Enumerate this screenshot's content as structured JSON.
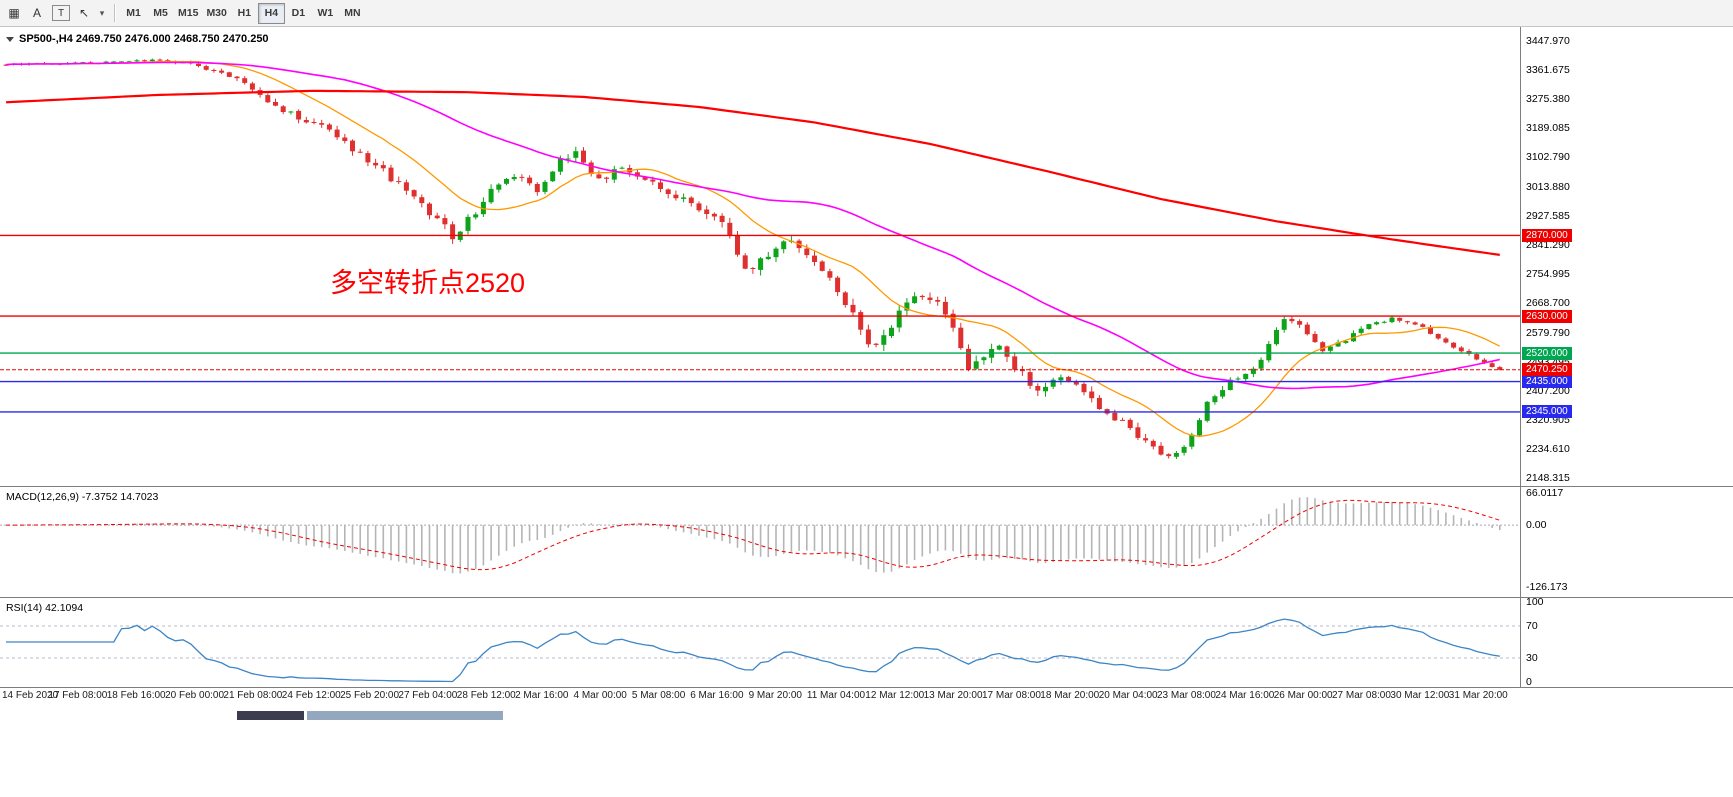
{
  "toolbar": {
    "icons": [
      {
        "name": "chart-grid-icon",
        "glyph": "▦",
        "boxed": false
      },
      {
        "name": "text-annotation-icon",
        "glyph": "A",
        "boxed": false
      },
      {
        "name": "text-label-icon",
        "glyph": "T",
        "boxed": true
      },
      {
        "name": "cursor-tool-icon",
        "glyph": "↖",
        "boxed": false
      },
      {
        "name": "dropdown-arrow-icon",
        "glyph": "▾",
        "boxed": false
      }
    ],
    "timeframes": [
      "M1",
      "M5",
      "M15",
      "M30",
      "H1",
      "H4",
      "D1",
      "W1",
      "MN"
    ],
    "selected_timeframe": "H4"
  },
  "chart": {
    "title": "SP500-,H4  2469.750 2476.000 2468.750 2470.250",
    "annotation": "多空转折点2520",
    "macd_label": "MACD(12,26,9) -7.3752 14.7023",
    "rsi_label": "RSI(14) 42.1094"
  },
  "chart_data": {
    "type": "candlestick",
    "symbol": "SP500-",
    "timeframe": "H4",
    "ohlc": {
      "open": "2469.750",
      "high": "2476.000",
      "low": "2468.750",
      "close": "2470.250"
    },
    "y_ticks": [
      "3447.970",
      "3361.675",
      "3275.380",
      "3189.085",
      "3102.790",
      "3013.880",
      "2927.585",
      "2841.290",
      "2754.995",
      "2668.700",
      "2579.790",
      "2493.495",
      "2407.200",
      "2320.905",
      "2234.610",
      "2148.315"
    ],
    "y_range": [
      2127.6,
      3472.0
    ],
    "x_labels": [
      "14 Feb 2020",
      "17 Feb 08:00",
      "18 Feb 16:00",
      "20 Feb 00:00",
      "21 Feb 08:00",
      "24 Feb 12:00",
      "25 Feb 20:00",
      "27 Feb 04:00",
      "28 Feb 12:00",
      "2 Mar 16:00",
      "4 Mar 00:00",
      "5 Mar 08:00",
      "6 Mar 16:00",
      "9 Mar 20:00",
      "11 Mar 04:00",
      "12 Mar 12:00",
      "13 Mar 20:00",
      "17 Mar 08:00",
      "18 Mar 20:00",
      "20 Mar 04:00",
      "23 Mar 08:00",
      "24 Mar 16:00",
      "26 Mar 00:00",
      "27 Mar 08:00",
      "30 Mar 12:00",
      "31 Mar 20:00"
    ],
    "num_candles": 195,
    "last_close": 2470.25,
    "price_anchors": [
      [
        0,
        3378,
        7
      ],
      [
        8,
        3382,
        7
      ],
      [
        14,
        3387,
        7
      ],
      [
        19,
        3391,
        8
      ],
      [
        24,
        3383,
        10
      ],
      [
        28,
        3350,
        14
      ],
      [
        31,
        3330,
        16
      ],
      [
        34,
        3268,
        20
      ],
      [
        38,
        3222,
        22
      ],
      [
        42,
        3180,
        22
      ],
      [
        45,
        3128,
        24
      ],
      [
        49,
        3060,
        26
      ],
      [
        52,
        3002,
        26
      ],
      [
        55,
        2940,
        28
      ],
      [
        58,
        2870,
        30
      ],
      [
        60,
        2915,
        28
      ],
      [
        63,
        3000,
        26
      ],
      [
        66,
        3048,
        24
      ],
      [
        69,
        3005,
        26
      ],
      [
        72,
        3095,
        24
      ],
      [
        74,
        3120,
        24
      ],
      [
        77,
        3030,
        26
      ],
      [
        80,
        3075,
        24
      ],
      [
        83,
        3042,
        24
      ],
      [
        86,
        3000,
        26
      ],
      [
        89,
        2965,
        26
      ],
      [
        92,
        2920,
        28
      ],
      [
        94,
        2880,
        30
      ],
      [
        96,
        2762,
        32
      ],
      [
        98,
        2790,
        30
      ],
      [
        101,
        2862,
        28
      ],
      [
        104,
        2815,
        28
      ],
      [
        107,
        2742,
        30
      ],
      [
        110,
        2642,
        34
      ],
      [
        112,
        2542,
        36
      ],
      [
        114,
        2562,
        34
      ],
      [
        116,
        2648,
        32
      ],
      [
        119,
        2692,
        30
      ],
      [
        121,
        2672,
        30
      ],
      [
        123,
        2602,
        32
      ],
      [
        125,
        2470,
        34
      ],
      [
        127,
        2505,
        32
      ],
      [
        129,
        2542,
        30
      ],
      [
        131,
        2478,
        30
      ],
      [
        134,
        2408,
        30
      ],
      [
        137,
        2452,
        28
      ],
      [
        139,
        2428,
        28
      ],
      [
        142,
        2350,
        28
      ],
      [
        145,
        2318,
        26
      ],
      [
        148,
        2252,
        26
      ],
      [
        151,
        2205,
        24
      ],
      [
        153,
        2238,
        24
      ],
      [
        156,
        2372,
        24
      ],
      [
        159,
        2442,
        22
      ],
      [
        162,
        2468,
        20
      ],
      [
        164,
        2548,
        20
      ],
      [
        166,
        2628,
        18
      ],
      [
        168,
        2598,
        18
      ],
      [
        171,
        2532,
        16
      ],
      [
        174,
        2562,
        16
      ],
      [
        177,
        2602,
        15
      ],
      [
        180,
        2622,
        14
      ],
      [
        183,
        2608,
        13
      ],
      [
        186,
        2568,
        13
      ],
      [
        189,
        2528,
        12
      ],
      [
        192,
        2492,
        10
      ],
      [
        194,
        2470.25,
        8
      ]
    ],
    "ma_slow_anchors": [
      [
        0,
        3266
      ],
      [
        20,
        3288
      ],
      [
        40,
        3300
      ],
      [
        60,
        3296
      ],
      [
        75,
        3282
      ],
      [
        90,
        3252
      ],
      [
        105,
        3206
      ],
      [
        120,
        3142
      ],
      [
        135,
        3062
      ],
      [
        150,
        2978
      ],
      [
        165,
        2912
      ],
      [
        180,
        2858
      ],
      [
        194,
        2812
      ]
    ],
    "moving_averages": {
      "fast_period": 13,
      "mid_period": 45
    },
    "levels": [
      {
        "price": 2870.0,
        "label": "2870.000",
        "color": "#ee0000"
      },
      {
        "price": 2630.0,
        "label": "2630.000",
        "color": "#ee0000"
      },
      {
        "price": 2520.0,
        "label": "2520.000",
        "color": "#00a651"
      },
      {
        "price": 2435.0,
        "label": "2435.000",
        "color": "#2929ee"
      },
      {
        "price": 2345.0,
        "label": "2345.000",
        "color": "#2929ee"
      }
    ],
    "current_price": {
      "price": 2470.25,
      "label": "2470.250",
      "color": "#ee0000"
    },
    "macd": {
      "ticks": [
        "66.0117",
        "0.00",
        "-126.173"
      ],
      "range": [
        -135,
        70
      ],
      "histogram_color": "#b5b5b5",
      "signal_color": "#ee0000"
    },
    "rsi": {
      "ticks": [
        "100",
        "70",
        "30",
        "0"
      ],
      "range": [
        0,
        100
      ],
      "levels": [
        30,
        70
      ],
      "line_color": "#3d85c6"
    },
    "colors": {
      "bull": "#0da41a",
      "bear": "#df3030",
      "ma_fast": "#ff9900",
      "ma_mid": "#ff00ff",
      "ma_slow": "#ff0000"
    }
  }
}
